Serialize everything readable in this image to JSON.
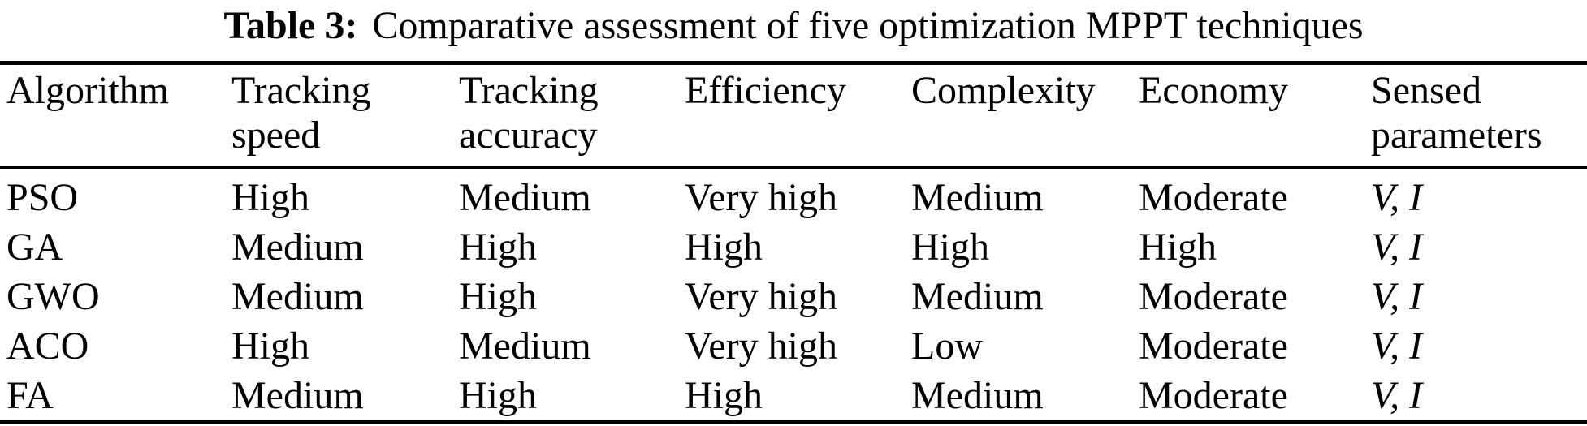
{
  "page": {
    "background_color": "#ffffff",
    "text_color": "#000000",
    "rule_color": "#000000"
  },
  "caption": {
    "label": "Table 3:",
    "text": "Comparative assessment of five optimization MPPT techniques"
  },
  "table": {
    "columns": [
      "Algorithm",
      "Tracking\nspeed",
      "Tracking\naccuracy",
      "Efficiency",
      "Complexity",
      "Economy",
      "Sensed\nparameters"
    ],
    "rows": [
      {
        "algorithm": "PSO",
        "tracking_speed": "High",
        "tracking_accuracy": "Medium",
        "efficiency": "Very high",
        "complexity": "Medium",
        "economy": "Moderate",
        "sensed_parameters": "V, I"
      },
      {
        "algorithm": "GA",
        "tracking_speed": "Medium",
        "tracking_accuracy": "High",
        "efficiency": "High",
        "complexity": "High",
        "economy": "High",
        "sensed_parameters": "V, I"
      },
      {
        "algorithm": "GWO",
        "tracking_speed": "Medium",
        "tracking_accuracy": "High",
        "efficiency": "Very high",
        "complexity": "Medium",
        "economy": "Moderate",
        "sensed_parameters": "V, I"
      },
      {
        "algorithm": "ACO",
        "tracking_speed": "High",
        "tracking_accuracy": "Medium",
        "efficiency": "Very high",
        "complexity": "Low",
        "economy": "Moderate",
        "sensed_parameters": "V, I"
      },
      {
        "algorithm": "FA",
        "tracking_speed": "Medium",
        "tracking_accuracy": "High",
        "efficiency": "High",
        "complexity": "Medium",
        "economy": "Moderate",
        "sensed_parameters": "V, I"
      }
    ]
  }
}
